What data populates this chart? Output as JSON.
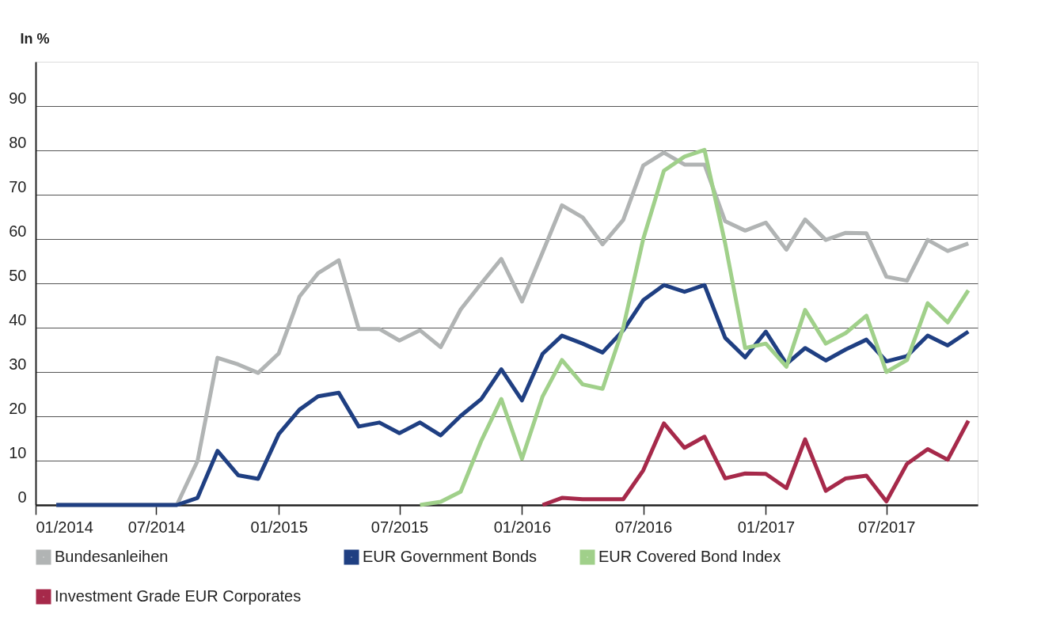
{
  "chart_data": {
    "type": "line",
    "ylabel": "In %",
    "x": [
      "2014-02",
      "2014-03",
      "2014-04",
      "2014-05",
      "2014-06",
      "2014-07",
      "2014-08",
      "2014-09",
      "2014-10",
      "2014-11",
      "2014-12",
      "2015-01",
      "2015-02",
      "2015-03",
      "2015-04",
      "2015-05",
      "2015-06",
      "2015-07",
      "2015-08",
      "2015-09",
      "2015-10",
      "2015-11",
      "2015-12",
      "2016-01",
      "2016-02",
      "2016-03",
      "2016-04",
      "2016-05",
      "2016-06",
      "2016-07",
      "2016-08",
      "2016-09",
      "2016-10",
      "2016-11",
      "2016-12",
      "2017-01",
      "2017-02",
      "2017-03",
      "2017-04",
      "2017-05",
      "2017-06",
      "2017-07",
      "2017-08",
      "2017-09",
      "2017-10",
      "2017-11"
    ],
    "series": [
      {
        "name": "Bundesanleihen",
        "color": "#b1b4b4",
        "values": [
          0,
          0,
          0,
          0,
          0,
          0,
          0,
          9.9,
          33.2,
          31.7,
          29.8,
          34.2,
          47,
          52.3,
          55.2,
          39.7,
          39.7,
          37.1,
          39.4,
          35.6,
          44.1,
          50,
          55.5,
          45.9,
          57,
          67.6,
          64.9,
          58.8,
          64.3,
          76.6,
          79.5,
          76.8,
          76.8,
          64,
          61.9,
          63.7,
          57.6,
          64.4,
          59.8,
          61.4,
          61.3,
          51.5,
          50.6,
          59.8,
          57.3,
          59
        ]
      },
      {
        "name": "EUR Government Bonds",
        "color": "#1f3f82",
        "values": [
          0,
          0,
          0,
          0,
          0,
          0,
          0,
          1.6,
          12.2,
          6.7,
          5.9,
          16,
          21.5,
          24.5,
          25.3,
          17.7,
          18.6,
          16.2,
          18.6,
          15.7,
          20.1,
          23.9,
          30.6,
          23.6,
          34.1,
          38.2,
          36.4,
          34.4,
          39.4,
          46.2,
          49.6,
          48.1,
          49.6,
          37.7,
          33.3,
          39.1,
          31.8,
          35.4,
          32.6,
          35.1,
          37.3,
          32.4,
          33.6,
          38.2,
          36,
          39.1
        ]
      },
      {
        "name": "EUR Covered Bond Index",
        "color": "#a0d08a",
        "values": [
          null,
          null,
          null,
          null,
          null,
          null,
          null,
          null,
          null,
          null,
          null,
          null,
          null,
          null,
          null,
          null,
          null,
          null,
          0,
          0.7,
          3,
          14.5,
          23.9,
          10.4,
          24.5,
          32.7,
          27.2,
          26.2,
          40,
          60,
          75.4,
          78.6,
          80.1,
          59,
          35.4,
          36.4,
          31.2,
          44,
          36.4,
          38.8,
          42.7,
          30,
          32.7,
          45.5,
          41.2,
          48.4
        ]
      },
      {
        "name": "Investment Grade EUR Corporates",
        "color": "#a6294a",
        "values": [
          null,
          null,
          null,
          null,
          null,
          null,
          null,
          null,
          null,
          null,
          null,
          null,
          null,
          null,
          null,
          null,
          null,
          null,
          null,
          null,
          null,
          null,
          null,
          null,
          0,
          1.6,
          1.3,
          1.3,
          1.3,
          7.8,
          18.4,
          12.9,
          15.4,
          6,
          7.1,
          7,
          3.8,
          14.8,
          3.2,
          6,
          6.6,
          0.8,
          9.3,
          12.6,
          10.2,
          19
        ]
      }
    ],
    "xlim": [
      "2014-01",
      "2017-11-15"
    ],
    "xticks": [
      {
        "value": "2014-01",
        "label": "01/2014"
      },
      {
        "value": "2014-07",
        "label": "07/2014"
      },
      {
        "value": "2015-01",
        "label": "01/2015"
      },
      {
        "value": "2015-07",
        "label": "07/2015"
      },
      {
        "value": "2016-01",
        "label": "01/2016"
      },
      {
        "value": "2016-07",
        "label": "07/2016"
      },
      {
        "value": "2017-01",
        "label": "01/2017"
      },
      {
        "value": "2017-07",
        "label": "07/2017"
      }
    ],
    "ylim": [
      0,
      100
    ],
    "yticks": [
      0,
      10,
      20,
      30,
      40,
      50,
      60,
      70,
      80,
      90
    ],
    "grid": "y",
    "legend": "bottom",
    "line_style": "solid"
  }
}
